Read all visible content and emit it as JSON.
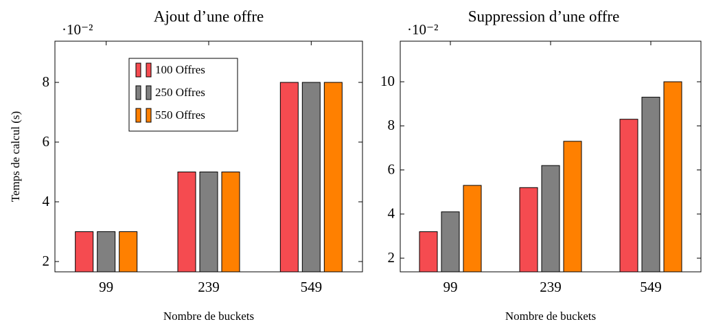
{
  "chart_data": [
    {
      "type": "bar",
      "title": "Ajout d’une offre",
      "y_multiplier": "·10⁻²",
      "xlabel": "Nombre de buckets",
      "ylabel": "Temps de calcul (s)",
      "categories": [
        "99",
        "239",
        "549"
      ],
      "series": [
        {
          "name": "100 Offres",
          "color": "#f54b50",
          "values": [
            3,
            5,
            8
          ]
        },
        {
          "name": "250 Offres",
          "color": "#808080",
          "values": [
            3,
            5,
            8
          ]
        },
        {
          "name": "550 Offres",
          "color": "#ff8000",
          "values": [
            3,
            5,
            8
          ]
        }
      ],
      "ylim": [
        1.655,
        9.38
      ],
      "yticks": [
        2,
        4,
        6,
        8
      ],
      "legend": "north"
    },
    {
      "type": "bar",
      "title": "Suppression d’une offre",
      "y_multiplier": "·10⁻²",
      "xlabel": "Nombre de buckets",
      "categories": [
        "99",
        "239",
        "549"
      ],
      "series": [
        {
          "name": "100 Offres",
          "color": "#f54b50",
          "values": [
            3.2,
            5.2,
            8.3
          ]
        },
        {
          "name": "250 Offres",
          "color": "#808080",
          "values": [
            4.1,
            6.2,
            9.3
          ]
        },
        {
          "name": "550 Offres",
          "color": "#ff8000",
          "values": [
            5.3,
            7.3,
            10
          ]
        }
      ],
      "ylim": [
        1.38,
        11.84
      ],
      "yticks": [
        2,
        4,
        6,
        8,
        10
      ]
    }
  ]
}
